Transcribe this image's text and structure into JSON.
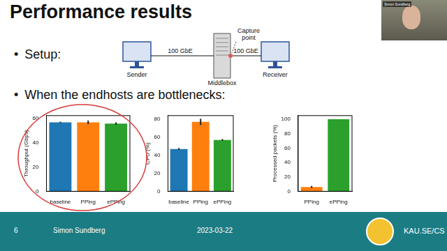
{
  "slide": {
    "title": "Performance results",
    "bullets": [
      "Setup:",
      "When the endhosts are bottlenecks:"
    ],
    "diagram": {
      "nodes": [
        "Sender",
        "Middlebox",
        "Receiver"
      ],
      "links": [
        "100 GbE",
        "100 GbE"
      ],
      "capture_label": "Capture point"
    },
    "speaker_label": "Simon Sundberg",
    "footer": {
      "page": 6,
      "author": "Simon Sundberg",
      "date": "2023-03-22",
      "site": "KAU.SE/CS"
    }
  },
  "chart_data": [
    {
      "type": "bar",
      "categories": [
        "baseline",
        "PPing",
        "ePPing"
      ],
      "values": [
        56.5,
        56.5,
        55.5
      ],
      "errors": [
        0.5,
        1.5,
        1
      ],
      "colors": [
        "#1f77b4",
        "#ff7f0e",
        "#2ca02c"
      ],
      "y_label": "Throughput (Gbps)",
      "ylim": [
        0,
        62
      ],
      "yticks": [
        0,
        20,
        40,
        60
      ]
    },
    {
      "type": "bar",
      "categories": [
        "baseline",
        "PPing",
        "ePPing"
      ],
      "values": [
        47,
        77,
        57
      ],
      "errors": [
        1,
        3.5,
        1
      ],
      "colors": [
        "#1f77b4",
        "#ff7f0e",
        "#2ca02c"
      ],
      "y_label": "CPU (%)",
      "ylim": [
        0,
        84
      ],
      "yticks": [
        0,
        20,
        40,
        60,
        80
      ]
    },
    {
      "type": "bar",
      "categories": [
        "PPing",
        "ePPing"
      ],
      "values": [
        6,
        100
      ],
      "errors": [
        1.5,
        0
      ],
      "colors": [
        "#ff7f0e",
        "#2ca02c"
      ],
      "y_label": "Processed packets (%)",
      "ylim": [
        0,
        105
      ],
      "yticks": [
        0,
        20,
        40,
        60,
        80,
        100
      ]
    }
  ]
}
